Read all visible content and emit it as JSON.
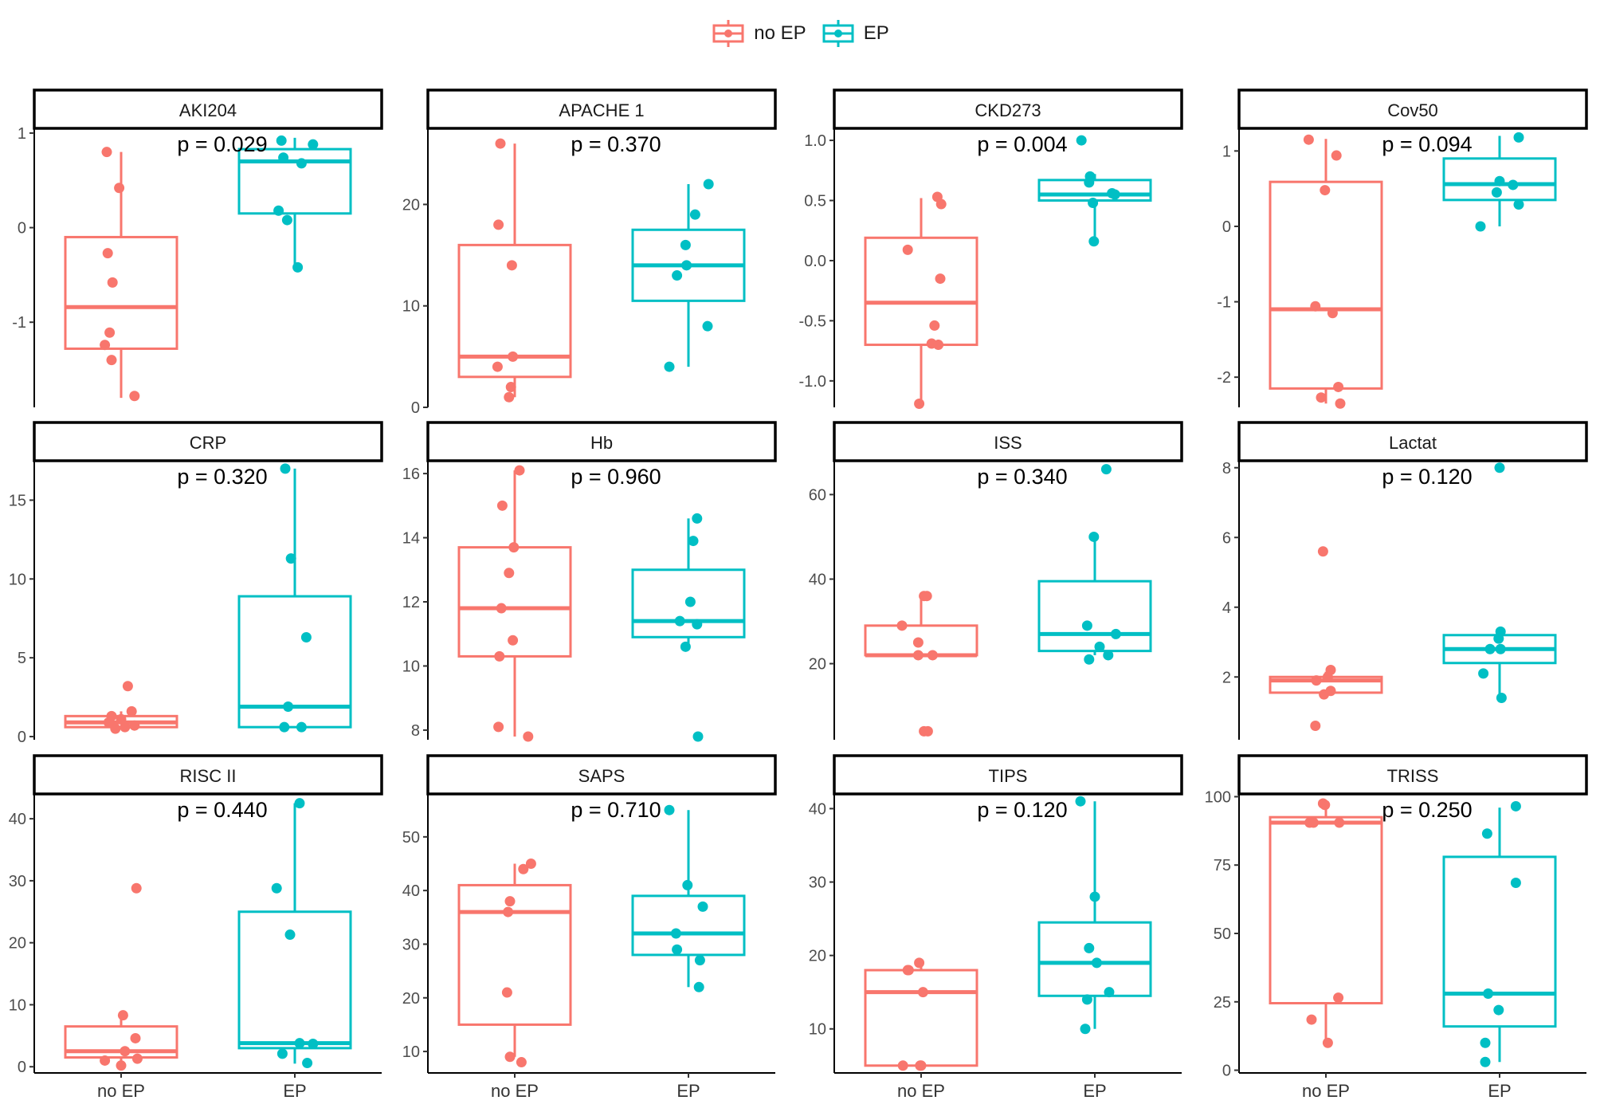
{
  "legend": [
    {
      "label": "no EP",
      "color": "#F8766D"
    },
    {
      "label": "EP",
      "color": "#00BFC4"
    }
  ],
  "chart_data": [
    {
      "type": "box",
      "title": "AKI204",
      "p_label": "p = 0.029",
      "ylim": [
        -1.9,
        1.05
      ],
      "yticks": [
        1,
        0,
        -1
      ],
      "categories": [
        "no EP",
        "EP"
      ],
      "boxes": [
        {
          "group": "no EP",
          "q1": -1.28,
          "median": -0.84,
          "q3": -0.1,
          "whisker_low": -1.8,
          "whisker_high": 0.8
        },
        {
          "group": "EP",
          "q1": 0.15,
          "median": 0.7,
          "q3": 0.83,
          "whisker_low": -0.42,
          "whisker_high": 0.95
        }
      ],
      "points": [
        {
          "group": "no EP",
          "values": [
            0.8,
            0.42,
            -0.27,
            -0.58,
            -1.11,
            -1.24,
            -1.4,
            -1.78
          ],
          "jitter": [
            -0.15,
            -0.02,
            -0.14,
            -0.09,
            -0.12,
            -0.17,
            -0.1,
            0.14
          ]
        },
        {
          "group": "EP",
          "values": [
            0.92,
            0.88,
            0.74,
            0.68,
            0.18,
            0.08,
            -0.42
          ],
          "jitter": [
            -0.14,
            0.19,
            -0.12,
            0.07,
            -0.17,
            -0.08,
            0.03
          ]
        }
      ]
    },
    {
      "type": "box",
      "title": "APACHE 1",
      "p_label": "p = 0.370",
      "ylim": [
        0,
        27.5
      ],
      "yticks": [
        20,
        10,
        0
      ],
      "categories": [
        "no EP",
        "EP"
      ],
      "boxes": [
        {
          "group": "no EP",
          "q1": 3,
          "median": 5,
          "q3": 16,
          "whisker_low": 1,
          "whisker_high": 26
        },
        {
          "group": "EP",
          "q1": 10.5,
          "median": 14,
          "q3": 17.5,
          "whisker_low": 4,
          "whisker_high": 22
        }
      ],
      "points": [
        {
          "group": "no EP",
          "values": [
            26,
            18,
            14,
            5,
            4,
            2,
            1
          ],
          "jitter": [
            -0.15,
            -0.17,
            -0.03,
            -0.02,
            -0.18,
            -0.04,
            -0.06
          ]
        },
        {
          "group": "EP",
          "values": [
            22,
            19,
            16,
            14,
            13,
            8,
            4
          ],
          "jitter": [
            0.21,
            0.07,
            -0.03,
            -0.02,
            -0.12,
            0.2,
            -0.2
          ]
        }
      ]
    },
    {
      "type": "box",
      "title": "CKD273",
      "p_label": "p = 0.004",
      "ylim": [
        -1.22,
        1.1
      ],
      "yticks": [
        1.0,
        0.5,
        0.0,
        -0.5,
        -1.0
      ],
      "tick_decimals": 1,
      "categories": [
        "no EP",
        "EP"
      ],
      "boxes": [
        {
          "group": "no EP",
          "q1": -0.7,
          "median": -0.35,
          "q3": 0.19,
          "whisker_low": -1.2,
          "whisker_high": 0.52
        },
        {
          "group": "EP",
          "q1": 0.5,
          "median": 0.55,
          "q3": 0.67,
          "whisker_low": 0.17,
          "whisker_high": 0.72
        }
      ],
      "points": [
        {
          "group": "no EP",
          "values": [
            0.53,
            0.47,
            0.09,
            -0.15,
            -0.54,
            -0.69,
            -0.7,
            -1.19
          ],
          "jitter": [
            0.17,
            0.21,
            -0.14,
            0.2,
            0.14,
            0.11,
            0.18,
            -0.02
          ]
        },
        {
          "group": "EP",
          "values": [
            1.0,
            0.7,
            0.65,
            0.56,
            0.55,
            0.48,
            0.16
          ],
          "jitter": [
            -0.14,
            -0.05,
            -0.06,
            0.18,
            0.21,
            -0.02,
            -0.01
          ]
        }
      ]
    },
    {
      "type": "box",
      "title": "Cov50",
      "p_label": "p = 0.094",
      "ylim": [
        -2.4,
        1.3
      ],
      "yticks": [
        1,
        0,
        -1,
        -2
      ],
      "categories": [
        "no EP",
        "EP"
      ],
      "boxes": [
        {
          "group": "no EP",
          "q1": -2.15,
          "median": -1.1,
          "q3": 0.59,
          "whisker_low": -2.35,
          "whisker_high": 1.16
        },
        {
          "group": "EP",
          "q1": 0.35,
          "median": 0.56,
          "q3": 0.9,
          "whisker_low": 0.0,
          "whisker_high": 1.2
        }
      ],
      "points": [
        {
          "group": "no EP",
          "values": [
            1.15,
            0.94,
            0.48,
            -1.06,
            -1.15,
            -2.13,
            -2.27,
            -2.35
          ],
          "jitter": [
            -0.18,
            0.11,
            -0.01,
            -0.11,
            0.07,
            0.13,
            -0.05,
            0.15
          ]
        },
        {
          "group": "EP",
          "values": [
            1.18,
            0.6,
            0.55,
            0.45,
            0.29,
            0.0
          ],
          "jitter": [
            0.2,
            0.0,
            0.14,
            -0.03,
            0.2,
            -0.2
          ]
        }
      ]
    },
    {
      "type": "box",
      "title": "CRP",
      "p_label": "p = 0.320",
      "ylim": [
        -0.2,
        17.5
      ],
      "yticks": [
        15,
        10,
        5,
        0
      ],
      "categories": [
        "no EP",
        "EP"
      ],
      "boxes": [
        {
          "group": "no EP",
          "q1": 0.6,
          "median": 0.9,
          "q3": 1.3,
          "whisker_low": 0.5,
          "whisker_high": 1.6
        },
        {
          "group": "EP",
          "q1": 0.6,
          "median": 1.9,
          "q3": 8.9,
          "whisker_low": 0.6,
          "whisker_high": 17
        }
      ],
      "points": [
        {
          "group": "no EP",
          "values": [
            3.2,
            1.6,
            1.3,
            1.1,
            0.9,
            0.7,
            0.6,
            0.5
          ],
          "jitter": [
            0.07,
            0.11,
            -0.1,
            0.0,
            -0.13,
            0.14,
            0.04,
            -0.06
          ]
        },
        {
          "group": "EP",
          "values": [
            17,
            11.3,
            6.3,
            1.9,
            0.6,
            0.6
          ],
          "jitter": [
            -0.1,
            -0.04,
            0.12,
            -0.07,
            -0.11,
            0.07
          ]
        }
      ]
    },
    {
      "type": "box",
      "title": "Hb",
      "p_label": "p = 0.960",
      "ylim": [
        7.7,
        16.4
      ],
      "yticks": [
        16,
        14,
        12,
        10,
        8
      ],
      "categories": [
        "no EP",
        "EP"
      ],
      "boxes": [
        {
          "group": "no EP",
          "q1": 10.3,
          "median": 11.8,
          "q3": 13.7,
          "whisker_low": 7.8,
          "whisker_high": 16.1
        },
        {
          "group": "EP",
          "q1": 10.9,
          "median": 11.4,
          "q3": 13.0,
          "whisker_low": 10.6,
          "whisker_high": 14.6
        }
      ],
      "points": [
        {
          "group": "no EP",
          "values": [
            16.1,
            15.0,
            13.7,
            12.9,
            11.8,
            10.8,
            10.3,
            8.1,
            7.8
          ],
          "jitter": [
            0.05,
            -0.13,
            -0.01,
            -0.06,
            -0.14,
            -0.02,
            -0.16,
            -0.17,
            0.14
          ]
        },
        {
          "group": "EP",
          "values": [
            14.6,
            13.9,
            12.0,
            11.4,
            11.3,
            10.6,
            7.8
          ],
          "jitter": [
            0.09,
            0.05,
            0.02,
            -0.09,
            0.09,
            -0.03,
            0.1
          ]
        }
      ]
    },
    {
      "type": "box",
      "title": "ISS",
      "p_label": "p = 0.340",
      "ylim": [
        2,
        68
      ],
      "yticks": [
        60,
        40,
        20
      ],
      "categories": [
        "no EP",
        "EP"
      ],
      "boxes": [
        {
          "group": "no EP",
          "q1": 22,
          "median": 22,
          "q3": 29,
          "whisker_low": 22,
          "whisker_high": 36
        },
        {
          "group": "EP",
          "q1": 23,
          "median": 27,
          "q3": 39.5,
          "whisker_low": 22,
          "whisker_high": 50
        }
      ],
      "points": [
        {
          "group": "no EP",
          "values": [
            36,
            36,
            29,
            25,
            22,
            22,
            4,
            4
          ],
          "jitter": [
            0.03,
            0.06,
            -0.2,
            -0.03,
            -0.03,
            0.12,
            0.03,
            0.07
          ]
        },
        {
          "group": "EP",
          "values": [
            66,
            50,
            29,
            27,
            24,
            22,
            21
          ],
          "jitter": [
            0.12,
            -0.01,
            -0.08,
            0.22,
            0.05,
            0.14,
            -0.06
          ]
        }
      ]
    },
    {
      "type": "box",
      "title": "Lactat",
      "p_label": "p = 0.120",
      "ylim": [
        0.2,
        8.2
      ],
      "yticks": [
        8,
        6,
        4,
        2
      ],
      "categories": [
        "no EP",
        "EP"
      ],
      "boxes": [
        {
          "group": "no EP",
          "q1": 1.55,
          "median": 1.9,
          "q3": 2.0,
          "whisker_low": 1.45,
          "whisker_high": 2.15
        },
        {
          "group": "EP",
          "q1": 2.4,
          "median": 2.8,
          "q3": 3.2,
          "whisker_low": 1.4,
          "whisker_high": 3.3
        }
      ],
      "points": [
        {
          "group": "no EP",
          "values": [
            5.6,
            2.2,
            2.0,
            1.9,
            1.6,
            1.5,
            0.6
          ],
          "jitter": [
            -0.03,
            0.05,
            0.02,
            -0.1,
            0.05,
            -0.02,
            -0.11
          ]
        },
        {
          "group": "EP",
          "values": [
            8.0,
            3.3,
            3.1,
            2.8,
            2.8,
            2.1,
            1.4
          ],
          "jitter": [
            0.0,
            0.01,
            -0.01,
            -0.1,
            0.01,
            -0.17,
            0.02
          ]
        }
      ]
    },
    {
      "type": "box",
      "title": "RISC II",
      "p_label": "p = 0.440",
      "ylim": [
        -1,
        44
      ],
      "yticks": [
        40,
        30,
        20,
        10,
        0
      ],
      "categories": [
        "no EP",
        "EP"
      ],
      "boxes": [
        {
          "group": "no EP",
          "q1": 1.5,
          "median": 2.5,
          "q3": 6.5,
          "whisker_low": 0.5,
          "whisker_high": 8.5
        },
        {
          "group": "EP",
          "q1": 3.0,
          "median": 3.8,
          "q3": 25.0,
          "whisker_low": 0.5,
          "whisker_high": 42.5
        }
      ],
      "points": [
        {
          "group": "no EP",
          "values": [
            28.8,
            8.3,
            4.6,
            2.5,
            1.3,
            1.0,
            0.2
          ],
          "jitter": [
            0.16,
            0.02,
            0.15,
            0.04,
            0.17,
            -0.17,
            0.0
          ]
        },
        {
          "group": "EP",
          "values": [
            42.5,
            28.8,
            21.3,
            3.8,
            3.7,
            2.1,
            0.6
          ],
          "jitter": [
            0.05,
            -0.19,
            -0.05,
            0.05,
            0.19,
            -0.13,
            0.13
          ]
        }
      ]
    },
    {
      "type": "box",
      "title": "SAPS",
      "p_label": "p = 0.710",
      "ylim": [
        6,
        58
      ],
      "yticks": [
        50,
        40,
        30,
        20,
        10
      ],
      "categories": [
        "no EP",
        "EP"
      ],
      "boxes": [
        {
          "group": "no EP",
          "q1": 15,
          "median": 36,
          "q3": 41,
          "whisker_low": 9,
          "whisker_high": 45
        },
        {
          "group": "EP",
          "q1": 28,
          "median": 32,
          "q3": 39,
          "whisker_low": 22,
          "whisker_high": 55
        }
      ],
      "points": [
        {
          "group": "no EP",
          "values": [
            45,
            44,
            38,
            36,
            21,
            9,
            8
          ],
          "jitter": [
            0.17,
            0.09,
            -0.05,
            -0.07,
            -0.08,
            -0.05,
            0.07
          ]
        },
        {
          "group": "EP",
          "values": [
            55,
            41,
            37,
            32,
            29,
            27,
            22
          ],
          "jitter": [
            -0.2,
            -0.01,
            0.15,
            -0.13,
            -0.12,
            0.12,
            0.11
          ]
        }
      ]
    },
    {
      "type": "box",
      "title": "TIPS",
      "p_label": "p = 0.120",
      "ylim": [
        4,
        42
      ],
      "yticks": [
        40,
        30,
        20,
        10
      ],
      "categories": [
        "no EP",
        "EP"
      ],
      "boxes": [
        {
          "group": "no EP",
          "q1": 5,
          "median": 15,
          "q3": 18,
          "whisker_low": 5,
          "whisker_high": 19
        },
        {
          "group": "EP",
          "q1": 14.5,
          "median": 19,
          "q3": 24.5,
          "whisker_low": 10,
          "whisker_high": 41
        }
      ],
      "points": [
        {
          "group": "no EP",
          "values": [
            19,
            18,
            18,
            15,
            5,
            5,
            5
          ],
          "jitter": [
            -0.02,
            -0.14,
            -0.13,
            0.02,
            0.0,
            -0.19,
            -0.01
          ]
        },
        {
          "group": "EP",
          "values": [
            41,
            28,
            21,
            19,
            15,
            14,
            10
          ],
          "jitter": [
            -0.15,
            0.0,
            -0.06,
            0.02,
            0.15,
            -0.08,
            -0.1
          ]
        }
      ]
    },
    {
      "type": "box",
      "title": "TRISS",
      "p_label": "p = 0.250",
      "ylim": [
        -1,
        101
      ],
      "yticks": [
        100,
        75,
        50,
        25,
        0
      ],
      "categories": [
        "no EP",
        "EP"
      ],
      "boxes": [
        {
          "group": "no EP",
          "q1": 24.5,
          "median": 90.5,
          "q3": 92.5,
          "whisker_low": 10,
          "whisker_high": 97.5
        },
        {
          "group": "EP",
          "q1": 16,
          "median": 28,
          "q3": 78,
          "whisker_low": 3,
          "whisker_high": 96
        }
      ],
      "points": [
        {
          "group": "no EP",
          "values": [
            97.5,
            97,
            90.5,
            90.5,
            90.5,
            26.5,
            18.5,
            10
          ],
          "jitter": [
            -0.03,
            -0.01,
            -0.17,
            -0.13,
            0.14,
            0.13,
            -0.15,
            0.02
          ]
        },
        {
          "group": "EP",
          "values": [
            96.5,
            86.5,
            68.5,
            28,
            22,
            10,
            3
          ],
          "jitter": [
            0.17,
            -0.13,
            0.17,
            -0.12,
            -0.01,
            -0.15,
            -0.15
          ]
        }
      ]
    }
  ]
}
